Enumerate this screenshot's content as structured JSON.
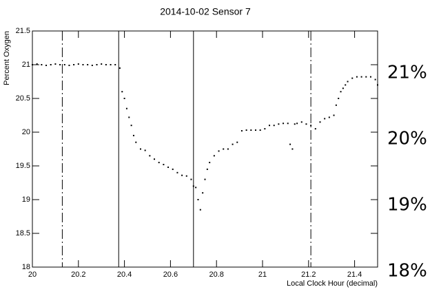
{
  "chart_data": {
    "type": "scatter",
    "title": "2014-10-02  Sensor 7",
    "xlabel": "Local Clock Hour (decimal)",
    "ylabel": "Percent Oxygen",
    "xlim": [
      20,
      21.5
    ],
    "ylim": [
      18,
      21.5
    ],
    "xticks": [
      20,
      20.2,
      20.4,
      20.6,
      20.8,
      21,
      21.2,
      21.4
    ],
    "yticks": [
      18,
      18.5,
      19,
      19.5,
      20,
      20.5,
      21,
      21.5
    ],
    "color": "#000000",
    "vlines": [
      {
        "x": 20.13,
        "style": "dashdot"
      },
      {
        "x": 20.375,
        "style": "solid"
      },
      {
        "x": 20.7,
        "style": "solid"
      },
      {
        "x": 21.21,
        "style": "dashdot"
      }
    ],
    "x": [
      20.0,
      20.02,
      20.04,
      20.06,
      20.08,
      20.1,
      20.12,
      20.14,
      20.16,
      20.18,
      20.2,
      20.22,
      20.24,
      20.26,
      20.28,
      20.3,
      20.32,
      20.34,
      20.36,
      20.38,
      20.39,
      20.4,
      20.41,
      20.42,
      20.43,
      20.44,
      20.45,
      20.47,
      20.49,
      20.51,
      20.53,
      20.55,
      20.57,
      20.59,
      20.61,
      20.63,
      20.65,
      20.67,
      20.69,
      20.7,
      20.71,
      20.72,
      20.73,
      20.74,
      20.75,
      20.76,
      20.77,
      20.79,
      20.81,
      20.83,
      20.85,
      20.87,
      20.89,
      20.91,
      20.93,
      20.95,
      20.97,
      20.99,
      21.01,
      21.03,
      21.05,
      21.07,
      21.09,
      21.11,
      21.12,
      21.13,
      21.14,
      21.15,
      21.17,
      21.19,
      21.21,
      21.23,
      21.25,
      21.27,
      21.29,
      21.31,
      21.32,
      21.33,
      21.34,
      21.35,
      21.36,
      21.37,
      21.39,
      21.41,
      21.43,
      21.45,
      21.47,
      21.49,
      21.5
    ],
    "y": [
      21.0,
      21.01,
      21.0,
      20.99,
      21.0,
      21.01,
      21.0,
      21.0,
      20.99,
      21.0,
      21.01,
      21.0,
      21.0,
      20.99,
      21.0,
      21.01,
      21.0,
      21.0,
      21.0,
      20.95,
      20.6,
      20.5,
      20.35,
      20.22,
      20.1,
      19.95,
      19.85,
      19.75,
      19.73,
      19.65,
      19.6,
      19.55,
      19.52,
      19.48,
      19.45,
      19.4,
      19.36,
      19.35,
      19.3,
      19.2,
      19.18,
      19.0,
      18.85,
      19.1,
      19.3,
      19.45,
      19.55,
      19.65,
      19.72,
      19.75,
      19.75,
      19.82,
      19.85,
      20.02,
      20.03,
      20.03,
      20.03,
      20.03,
      20.05,
      20.1,
      20.1,
      20.12,
      20.13,
      20.13,
      19.82,
      19.75,
      20.12,
      20.13,
      20.15,
      20.12,
      20.1,
      20.05,
      20.15,
      20.2,
      20.22,
      20.25,
      20.4,
      20.5,
      20.6,
      20.65,
      20.7,
      20.75,
      20.8,
      20.82,
      20.82,
      20.82,
      20.82,
      20.78,
      20.7
    ]
  },
  "annotations": [
    "21%",
    "20%",
    "19%",
    "18%"
  ]
}
